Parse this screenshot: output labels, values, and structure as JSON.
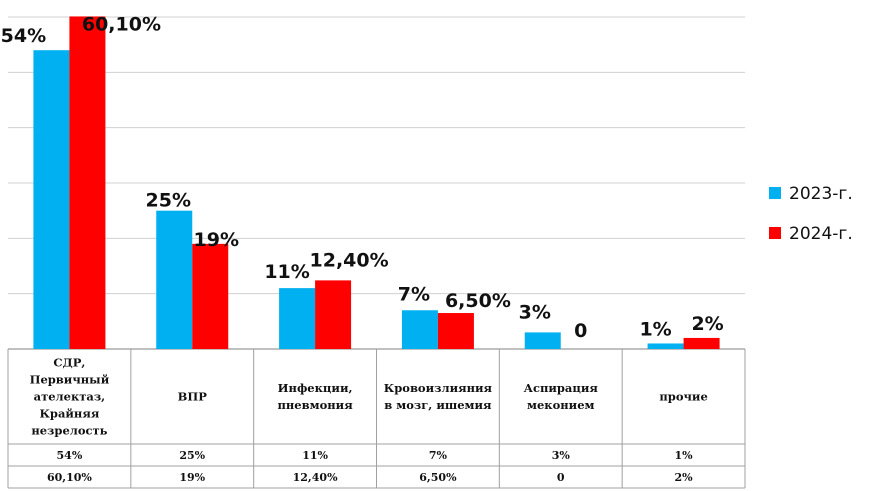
{
  "chart_data": {
    "type": "bar",
    "categories": [
      [
        "СДР,",
        "Первичный",
        "ателектаз,",
        "Крайняя",
        "незрелость"
      ],
      [
        "ВПР"
      ],
      [
        "Инфекции,",
        "пневмония"
      ],
      [
        "Кровоизлияния",
        "в мозг, ишемия"
      ],
      [
        "Аспирация",
        "меконием"
      ],
      [
        "прочие"
      ]
    ],
    "series": [
      {
        "name": "2023-г.",
        "color": "#00b0f0",
        "values": [
          54,
          25,
          11,
          7,
          3,
          1
        ],
        "labels": [
          "54%",
          "25%",
          "11%",
          "7%",
          "3%",
          "1%"
        ],
        "table_labels": [
          "54%",
          "25%",
          "11%",
          "7%",
          "3%",
          "1%"
        ]
      },
      {
        "name": "2024-г.",
        "color": "#ff0000",
        "values": [
          60.1,
          19,
          12.4,
          6.5,
          0,
          2
        ],
        "labels": [
          "60,10%",
          "19%",
          "12,40%",
          "6,50%",
          "0",
          "2%"
        ],
        "table_labels": [
          "60,10%",
          "19%",
          "12,40%",
          "6,50%",
          "0",
          "2%"
        ]
      }
    ],
    "ylim": [
      0,
      60
    ],
    "grid": true,
    "legend": "right",
    "data_table": true
  }
}
